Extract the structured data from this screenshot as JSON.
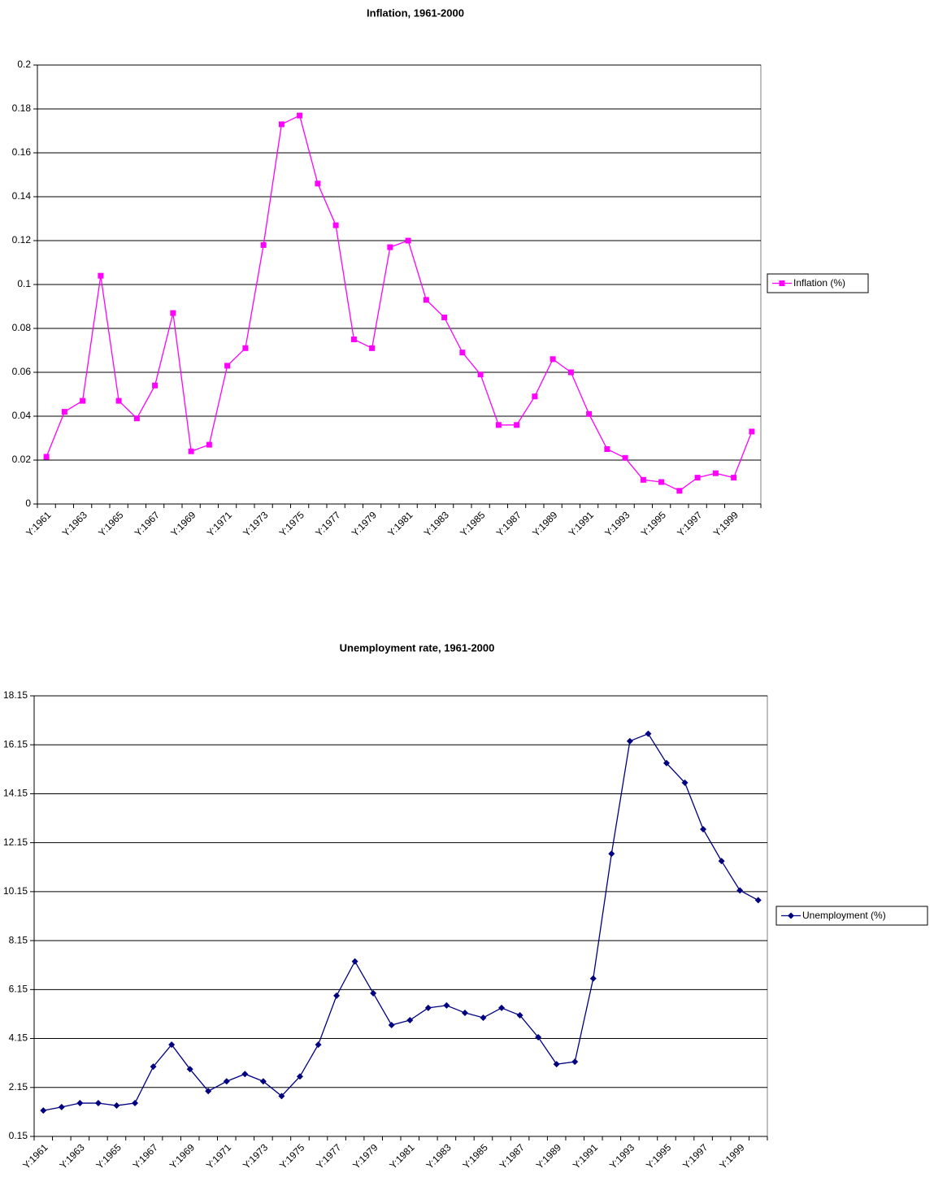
{
  "chart_data": [
    {
      "type": "line",
      "title": "Inflation, 1961-2000",
      "categories": [
        "Y:1961",
        null,
        "Y:1963",
        null,
        "Y:1965",
        null,
        "Y:1967",
        null,
        "Y:1969",
        null,
        "Y:1971",
        null,
        "Y:1973",
        null,
        "Y:1975",
        null,
        "Y:1977",
        null,
        "Y:1979",
        null,
        "Y:1981",
        null,
        "Y:1983",
        null,
        "Y:1985",
        null,
        "Y:1987",
        null,
        "Y:1989",
        null,
        "Y:1991",
        null,
        "Y:1993",
        null,
        "Y:1995",
        null,
        "Y:1997",
        null,
        "Y:1999",
        null
      ],
      "series": [
        {
          "name": "Inflation (%)",
          "color": "#ff00ff",
          "marker": "square",
          "values": [
            0.0215,
            0.042,
            0.047,
            0.104,
            0.047,
            0.039,
            0.054,
            0.087,
            0.024,
            0.027,
            0.063,
            0.071,
            0.118,
            0.173,
            0.177,
            0.146,
            0.127,
            0.075,
            0.071,
            0.117,
            0.12,
            0.093,
            0.085,
            0.069,
            0.059,
            0.036,
            0.036,
            0.049,
            0.066,
            0.06,
            0.041,
            0.025,
            0.021,
            0.011,
            0.01,
            0.006,
            0.012,
            0.014,
            0.012,
            0.033
          ]
        }
      ],
      "ylim": [
        0,
        0.2
      ],
      "yticks": [
        0,
        0.02,
        0.04,
        0.06,
        0.08,
        0.1,
        0.12,
        0.14,
        0.16,
        0.18,
        0.2
      ],
      "grid": true,
      "legend": "right"
    },
    {
      "type": "line",
      "title": "Unemployment rate, 1961-2000",
      "categories": [
        "Y:1961",
        null,
        "Y:1963",
        null,
        "Y:1965",
        null,
        "Y:1967",
        null,
        "Y:1969",
        null,
        "Y:1971",
        null,
        "Y:1973",
        null,
        "Y:1975",
        null,
        "Y:1977",
        null,
        "Y:1979",
        null,
        "Y:1981",
        null,
        "Y:1983",
        null,
        "Y:1985",
        null,
        "Y:1987",
        null,
        "Y:1989",
        null,
        "Y:1991",
        null,
        "Y:1993",
        null,
        "Y:1995",
        null,
        "Y:1997",
        null,
        "Y:1999",
        null
      ],
      "series": [
        {
          "name": "Unemployment (%)",
          "color": "#000080",
          "marker": "diamond",
          "values": [
            1.21,
            1.35,
            1.51,
            1.51,
            1.41,
            1.51,
            3.0,
            3.9,
            2.9,
            2.0,
            2.4,
            2.7,
            2.4,
            1.8,
            2.6,
            3.9,
            5.9,
            7.3,
            6.0,
            4.7,
            4.9,
            5.4,
            5.5,
            5.2,
            5.0,
            5.4,
            5.1,
            4.2,
            3.1,
            3.2,
            6.6,
            11.7,
            16.3,
            16.6,
            15.4,
            14.6,
            12.7,
            11.4,
            10.2,
            9.8
          ]
        }
      ],
      "ylim": [
        0.15,
        18.15
      ],
      "yticks": [
        0.15,
        2.15,
        4.15,
        6.15,
        8.15,
        10.15,
        12.15,
        14.15,
        16.15,
        18.15
      ],
      "grid": true,
      "legend": "right"
    }
  ]
}
